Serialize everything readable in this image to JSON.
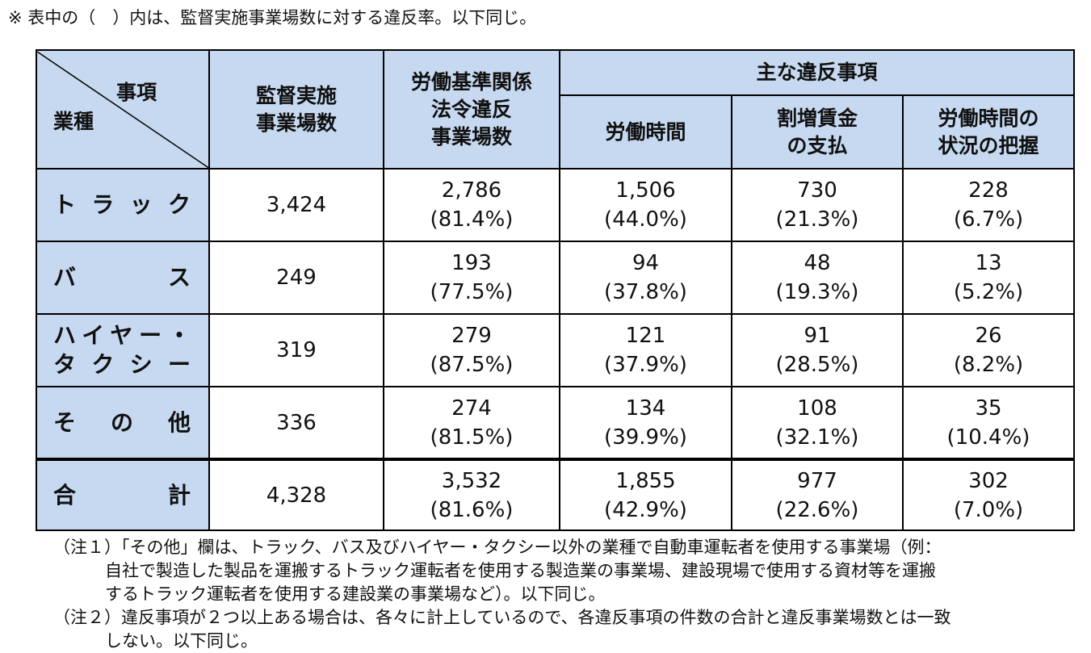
{
  "note_top": "※ 表中の（　）内は、監督実施事業場数に対する違反率。以下同じ。",
  "table": {
    "header": {
      "corner_top": "事項",
      "corner_bottom": "業種",
      "col1": [
        "監督実施",
        "事業場数"
      ],
      "col2": [
        "労働基準関係",
        "法令違反",
        "事業場数"
      ],
      "group": "主な違反事項",
      "sub": [
        [
          "労働時間"
        ],
        [
          "割増賃金",
          "の支払"
        ],
        [
          "労働時間の",
          "状況の把握"
        ]
      ]
    },
    "rows": [
      {
        "label": [
          "トラック"
        ],
        "cells": [
          [
            "3,424"
          ],
          [
            "2,786",
            "(81.4%)"
          ],
          [
            "1,506",
            "(44.0%)"
          ],
          [
            "730",
            "(21.3%)"
          ],
          [
            "228",
            "(6.7%)"
          ]
        ]
      },
      {
        "label": [
          "バス"
        ],
        "cells": [
          [
            "249"
          ],
          [
            "193",
            "(77.5%)"
          ],
          [
            "94",
            "(37.8%)"
          ],
          [
            "48",
            "(19.3%)"
          ],
          [
            "13",
            "(5.2%)"
          ]
        ]
      },
      {
        "label": [
          "ハイヤー・",
          "タクシー"
        ],
        "cells": [
          [
            "319"
          ],
          [
            "279",
            "(87.5%)"
          ],
          [
            "121",
            "(37.9%)"
          ],
          [
            "91",
            "(28.5%)"
          ],
          [
            "26",
            "(8.2%)"
          ]
        ]
      },
      {
        "label": [
          "その他"
        ],
        "cells": [
          [
            "336"
          ],
          [
            "274",
            "(81.5%)"
          ],
          [
            "134",
            "(39.9%)"
          ],
          [
            "108",
            "(32.1%)"
          ],
          [
            "35",
            "(10.4%)"
          ]
        ]
      },
      {
        "label": [
          "合計"
        ],
        "cells": [
          [
            "4,328"
          ],
          [
            "3,532",
            "(81.6%)"
          ],
          [
            "1,855",
            "(42.9%)"
          ],
          [
            "977",
            "(22.6%)"
          ],
          [
            "302",
            "(7.0%)"
          ]
        ]
      }
    ]
  },
  "notes": [
    {
      "label": "（注１）",
      "lines": [
        "「その他」欄は、トラック、バス及びハイヤー・タクシー以外の業種で自動車運転者を使用する事業場（例：",
        "自社で製造した製品を運搬するトラック運転者を使用する製造業の事業場、建設現場で使用する資材等を運搬",
        "するトラック運転者を使用する建設業の事業場など）。以下同じ。"
      ]
    },
    {
      "label": "（注２）",
      "lines": [
        "違反事項が２つ以上ある場合は、各々に計上しているので、各違反事項の件数の合計と違反事業場数とは一致",
        "しない。以下同じ。"
      ]
    }
  ]
}
